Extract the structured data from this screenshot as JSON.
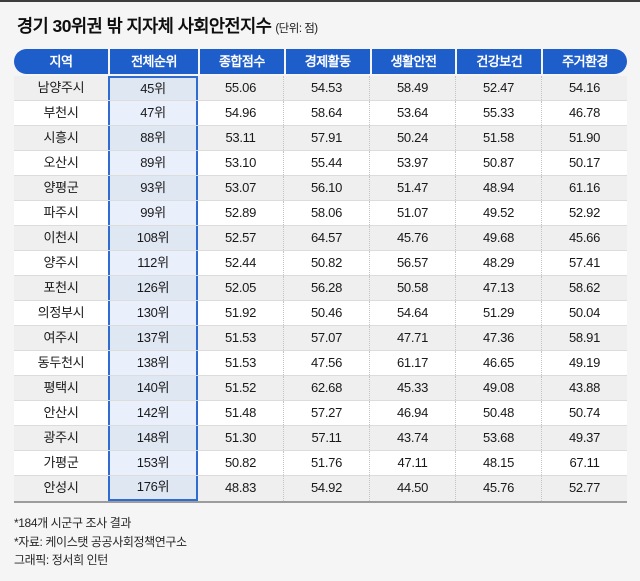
{
  "title": "경기 30위권 밖 지자체 사회안전지수",
  "unit_label": "(단위: 점)",
  "footnotes": [
    "*184개 시군구 조사 결과",
    "*자료: 케이스탯 공공사회정책연구소",
    "그래픽: 정서희 인턴"
  ],
  "colors": {
    "header_bg": "#1e5ecb",
    "rank_border": "#2e6bd2",
    "rank_bg_odd": "#dfe7f3",
    "rank_bg_even": "#e9effb",
    "row_odd": "#efeff0",
    "row_even": "#ffffff"
  },
  "chart_data": {
    "type": "table",
    "title": "경기 30위권 밖 지자체 사회안전지수",
    "unit": "점",
    "columns": [
      "지역",
      "전체순위",
      "종합점수",
      "경제활동",
      "생활안전",
      "건강보건",
      "주거환경"
    ],
    "highlighted_column": "전체순위",
    "rows": [
      [
        "남양주시",
        "45위",
        "55.06",
        "54.53",
        "58.49",
        "52.47",
        "54.16"
      ],
      [
        "부천시",
        "47위",
        "54.96",
        "58.64",
        "53.64",
        "55.33",
        "46.78"
      ],
      [
        "시흥시",
        "88위",
        "53.11",
        "57.91",
        "50.24",
        "51.58",
        "51.90"
      ],
      [
        "오산시",
        "89위",
        "53.10",
        "55.44",
        "53.97",
        "50.87",
        "50.17"
      ],
      [
        "양평군",
        "93위",
        "53.07",
        "56.10",
        "51.47",
        "48.94",
        "61.16"
      ],
      [
        "파주시",
        "99위",
        "52.89",
        "58.06",
        "51.07",
        "49.52",
        "52.92"
      ],
      [
        "이천시",
        "108위",
        "52.57",
        "64.57",
        "45.76",
        "49.68",
        "45.66"
      ],
      [
        "양주시",
        "112위",
        "52.44",
        "50.82",
        "56.57",
        "48.29",
        "57.41"
      ],
      [
        "포천시",
        "126위",
        "52.05",
        "56.28",
        "50.58",
        "47.13",
        "58.62"
      ],
      [
        "의정부시",
        "130위",
        "51.92",
        "50.46",
        "54.64",
        "51.29",
        "50.04"
      ],
      [
        "여주시",
        "137위",
        "51.53",
        "57.07",
        "47.71",
        "47.36",
        "58.91"
      ],
      [
        "동두천시",
        "138위",
        "51.53",
        "47.56",
        "61.17",
        "46.65",
        "49.19"
      ],
      [
        "평택시",
        "140위",
        "51.52",
        "62.68",
        "45.33",
        "49.08",
        "43.88"
      ],
      [
        "안산시",
        "142위",
        "51.48",
        "57.27",
        "46.94",
        "50.48",
        "50.74"
      ],
      [
        "광주시",
        "148위",
        "51.30",
        "57.11",
        "43.74",
        "53.68",
        "49.37"
      ],
      [
        "가평군",
        "153위",
        "50.82",
        "51.76",
        "47.11",
        "48.15",
        "67.11"
      ],
      [
        "안성시",
        "176위",
        "48.83",
        "54.92",
        "44.50",
        "45.76",
        "52.77"
      ]
    ]
  }
}
